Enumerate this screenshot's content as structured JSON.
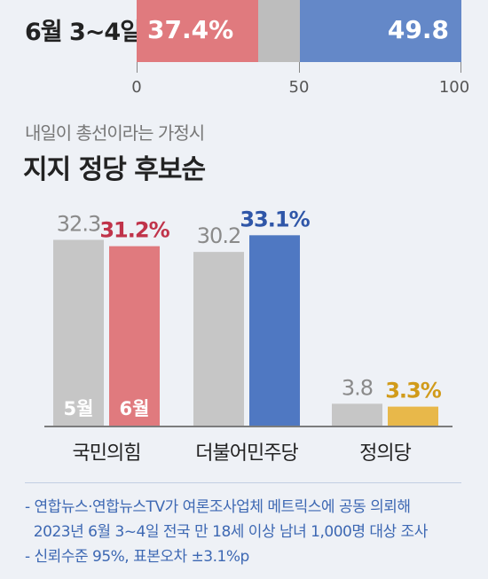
{
  "top": {
    "label": "6월 3~4일",
    "segments": [
      {
        "value": 37.4,
        "text": "37.4%",
        "color": "#e07a7e"
      },
      {
        "value": 12.8,
        "text": "",
        "color": "#bdbdbd"
      },
      {
        "value": 49.8,
        "text": "49.8",
        "color": "#6488c8"
      }
    ],
    "scale_labels": [
      "0",
      "50",
      "100"
    ],
    "scale_max": 100
  },
  "subtitle": "내일이 총선이라는 가정시",
  "title": "지지 정당 후보순",
  "chart_data": {
    "type": "bar",
    "categories": [
      "국민의힘",
      "더불어민주당",
      "정의당"
    ],
    "series": [
      {
        "name": "5월",
        "values": [
          32.3,
          30.2,
          3.8
        ],
        "labels": [
          "32.3",
          "30.2",
          "3.8"
        ]
      },
      {
        "name": "6월",
        "values": [
          31.2,
          33.1,
          3.3
        ],
        "labels": [
          "31.2%",
          "33.1%",
          "3.3%"
        ]
      }
    ],
    "colors": {
      "may": "#c6c6c6",
      "june": [
        "#e07a7e",
        "#4f78c2",
        "#e8b84a"
      ],
      "june_label": [
        "#c0334a",
        "#2f56a8",
        "#d19b1a"
      ],
      "may_label": "#8a8a8a"
    },
    "ylim": [
      0,
      35
    ]
  },
  "notes": [
    "- 연합뉴스·연합뉴스TV가 여론조사업체 메트릭스에 공동 의뢰해",
    "  2023년 6월 3~4일 전국 만 18세 이상 남녀 1,000명 대상 조사",
    "- 신뢰수준 95%, 표본오차 ±3.1%p"
  ]
}
